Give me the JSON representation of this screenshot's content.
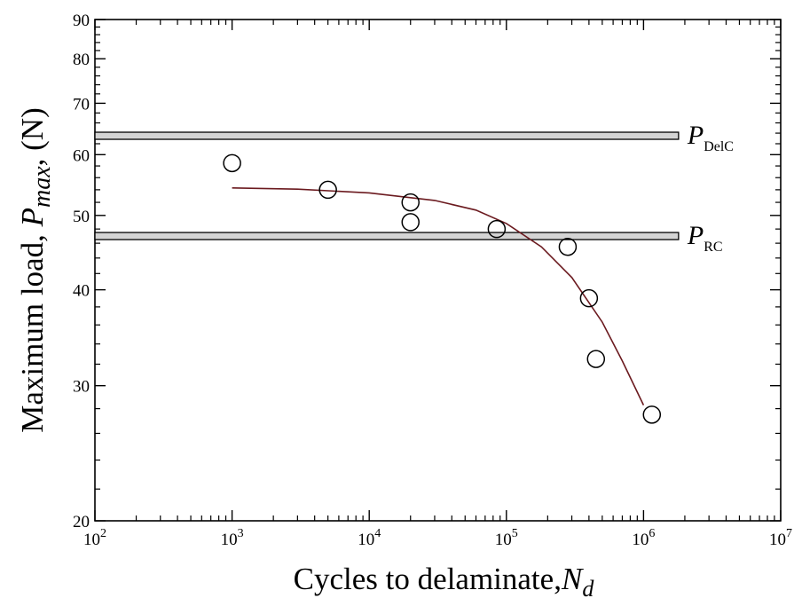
{
  "chart_data": {
    "type": "scatter",
    "xscale": "log",
    "yscale": "log",
    "xlim": [
      100,
      10000000
    ],
    "ylim": [
      20,
      90
    ],
    "x_ticks": [
      {
        "value": 100,
        "base": "10",
        "exp": "2"
      },
      {
        "value": 1000,
        "base": "10",
        "exp": "3"
      },
      {
        "value": 10000,
        "base": "10",
        "exp": "4"
      },
      {
        "value": 100000,
        "base": "10",
        "exp": "5"
      },
      {
        "value": 1000000,
        "base": "10",
        "exp": "6"
      },
      {
        "value": 10000000,
        "base": "10",
        "exp": "7"
      }
    ],
    "y_ticks": [
      20,
      30,
      40,
      50,
      60,
      70,
      80,
      90
    ],
    "xlabel": {
      "text": "Cycles to delaminate,",
      "var": "N",
      "sub": "d"
    },
    "ylabel": {
      "text": "Maximum load,",
      "var": "P",
      "sub": "max",
      "unit": ", (N)"
    },
    "points": [
      {
        "x": 1000,
        "y": 58.5
      },
      {
        "x": 5000,
        "y": 54
      },
      {
        "x": 20000,
        "y": 52
      },
      {
        "x": 20000,
        "y": 49
      },
      {
        "x": 85000,
        "y": 48
      },
      {
        "x": 280000,
        "y": 45.5
      },
      {
        "x": 400000,
        "y": 39
      },
      {
        "x": 450000,
        "y": 32.5
      },
      {
        "x": 1150000,
        "y": 27.5
      }
    ],
    "fit_curve": [
      {
        "x": 1000,
        "y": 54.3
      },
      {
        "x": 3000,
        "y": 54.1
      },
      {
        "x": 10000,
        "y": 53.5
      },
      {
        "x": 30000,
        "y": 52.3
      },
      {
        "x": 60000,
        "y": 50.8
      },
      {
        "x": 100000,
        "y": 48.8
      },
      {
        "x": 180000,
        "y": 45.5
      },
      {
        "x": 300000,
        "y": 41.5
      },
      {
        "x": 500000,
        "y": 36.3
      },
      {
        "x": 700000,
        "y": 32.3
      },
      {
        "x": 1000000,
        "y": 28.3
      }
    ],
    "reference_lines": [
      {
        "name": "P_DelC",
        "label": "P",
        "sub": "DelC",
        "y": 63.5
      },
      {
        "name": "P_RC",
        "label": "P",
        "sub": "RC",
        "y": 47
      }
    ],
    "colors": {
      "fit_curve": "#6b1a1f",
      "band_fill": "#d4d4d4",
      "axis": "#000000"
    },
    "grid": false
  }
}
